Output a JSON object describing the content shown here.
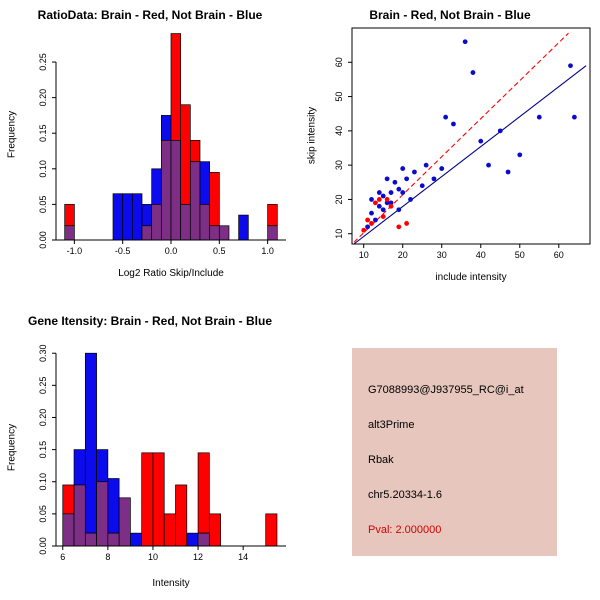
{
  "window": {
    "background": "#ffffff"
  },
  "chart_data": [
    {
      "id": "ratio-hist",
      "type": "bar",
      "subtype": "overlaid-histogram",
      "title": "RatioData: Brain - Red, Not Brain - Blue",
      "xlabel": "Log2 Ratio Skip/Include",
      "ylabel": "Frequency",
      "xlim": [
        -1.19,
        1.19
      ],
      "ylim": [
        0,
        0.295
      ],
      "xticks": [
        -1.0,
        -0.5,
        0.0,
        0.5,
        1.0
      ],
      "xtick_labels": [
        "-1.0",
        "-0.5",
        "0.0",
        "0.5",
        "1.0"
      ],
      "yticks": [
        0,
        0.05,
        0.1,
        0.15,
        0.2,
        0.25
      ],
      "ytick_labels": [
        "0.00",
        "0.05",
        "0.10",
        "0.15",
        "0.20",
        "0.25"
      ],
      "bins_start": -1.1,
      "bin_width": 0.1,
      "overlap_color": "#7d2f86",
      "grid": false,
      "legend": "none",
      "series": [
        {
          "name": "Brain",
          "color": "#ff0000",
          "values": [
            0.05,
            0,
            0,
            0,
            0,
            0,
            0,
            0,
            0.02,
            0.05,
            0.14,
            0.29,
            0.19,
            0.14,
            0.05,
            0.095,
            0.02,
            0,
            0,
            0,
            0,
            0.05
          ]
        },
        {
          "name": "Not Brain",
          "color": "#0b0bee",
          "values": [
            0.02,
            0,
            0,
            0,
            0,
            0.065,
            0.065,
            0.065,
            0.05,
            0.1,
            0.175,
            0.14,
            0.05,
            0.11,
            0.11,
            0.02,
            0.02,
            0,
            0.035,
            0,
            0,
            0.02
          ]
        }
      ]
    },
    {
      "id": "scatter",
      "type": "scatter",
      "title": "Brain - Red, Not Brain - Blue",
      "xlabel": "include intensity",
      "ylabel": "skip intensity",
      "xlim": [
        7,
        68
      ],
      "ylim": [
        7,
        70
      ],
      "xticks": [
        10,
        20,
        30,
        40,
        50,
        60
      ],
      "xtick_labels": [
        "10",
        "20",
        "30",
        "40",
        "50",
        "60"
      ],
      "yticks": [
        10,
        20,
        30,
        40,
        50,
        60
      ],
      "ytick_labels": [
        "10",
        "20",
        "30",
        "40",
        "50",
        "60"
      ],
      "grid": false,
      "legend": "none",
      "series": [
        {
          "name": "Not Brain",
          "color": "#0b0bcd",
          "points": [
            [
              11,
              12
            ],
            [
              12,
              16
            ],
            [
              12,
              20
            ],
            [
              13,
              14
            ],
            [
              14,
              18
            ],
            [
              14,
              22
            ],
            [
              15,
              17
            ],
            [
              15,
              21
            ],
            [
              16,
              19
            ],
            [
              16,
              26
            ],
            [
              17,
              19
            ],
            [
              17,
              22
            ],
            [
              18,
              25
            ],
            [
              19,
              17
            ],
            [
              19,
              23
            ],
            [
              20,
              22
            ],
            [
              20,
              29
            ],
            [
              21,
              26
            ],
            [
              22,
              20
            ],
            [
              23,
              28
            ],
            [
              25,
              24
            ],
            [
              26,
              30
            ],
            [
              28,
              26
            ],
            [
              30,
              29
            ],
            [
              31,
              44
            ],
            [
              33,
              42
            ],
            [
              36,
              66
            ],
            [
              38,
              57
            ],
            [
              40,
              37
            ],
            [
              42,
              30
            ],
            [
              45,
              40
            ],
            [
              47,
              28
            ],
            [
              50,
              33
            ],
            [
              55,
              44
            ],
            [
              63,
              59
            ],
            [
              64,
              44
            ]
          ]
        },
        {
          "name": "Brain",
          "color": "#ff0000",
          "points": [
            [
              10,
              11
            ],
            [
              11,
              14
            ],
            [
              12,
              13
            ],
            [
              13,
              19
            ],
            [
              14,
              20
            ],
            [
              15,
              15
            ],
            [
              16,
              20
            ],
            [
              17,
              18
            ],
            [
              19,
              12
            ],
            [
              21,
              13
            ]
          ]
        }
      ],
      "lines": [
        {
          "name": "fit-brain",
          "color": "#00008b",
          "dash": "",
          "x1": 7.5,
          "y1": 7,
          "x2": 67,
          "y2": 59
        },
        {
          "name": "fit-notbrain",
          "color": "#ff0000",
          "dash": "5,3",
          "x1": 7.5,
          "y1": 7.5,
          "x2": 62.5,
          "y2": 68.5
        }
      ]
    },
    {
      "id": "gene-hist",
      "type": "bar",
      "subtype": "overlaid-histogram",
      "title": "Gene Itensity: Brain - Red, Not Brain - Blue",
      "xlabel": "Intensity",
      "ylabel": "Frequency",
      "xlim": [
        5.7,
        15.9
      ],
      "ylim": [
        0,
        0.305
      ],
      "xticks": [
        6,
        8,
        10,
        12,
        14
      ],
      "xtick_labels": [
        "6",
        "8",
        "10",
        "12",
        "14"
      ],
      "yticks": [
        0,
        0.05,
        0.1,
        0.15,
        0.2,
        0.25,
        0.3
      ],
      "ytick_labels": [
        "0.00",
        "0.05",
        "0.10",
        "0.15",
        "0.20",
        "0.25",
        "0.30"
      ],
      "bins_start": 6.0,
      "bin_width": 0.5,
      "overlap_color": "#7d2f86",
      "grid": false,
      "legend": "none",
      "series": [
        {
          "name": "Brain",
          "color": "#ff0000",
          "values": [
            0.095,
            0.095,
            0.02,
            0.1,
            0.02,
            0.075,
            0,
            0.145,
            0.145,
            0.05,
            0.095,
            0,
            0.145,
            0.05,
            0,
            0,
            0,
            0,
            0.05
          ]
        },
        {
          "name": "Not Brain",
          "color": "#0b0bee",
          "values": [
            0.05,
            0.15,
            0.3,
            0.15,
            0.105,
            0.075,
            0.02,
            0,
            0,
            0,
            0,
            0.02,
            0.02,
            0,
            0,
            0,
            0,
            0,
            0
          ]
        }
      ]
    }
  ],
  "info_panel": {
    "bg_color": "#e6c6bd",
    "lines": [
      {
        "text": "G7088993@J937955_RC@i_at",
        "color": "#000000"
      },
      {
        "text": "alt3Prime",
        "color": "#000000"
      },
      {
        "text": "Rbak",
        "color": "#000000"
      },
      {
        "text": "chr5.20334-1.6",
        "color": "#000000"
      },
      {
        "text": "Pval: 2.000000",
        "color": "#d40000"
      }
    ]
  }
}
